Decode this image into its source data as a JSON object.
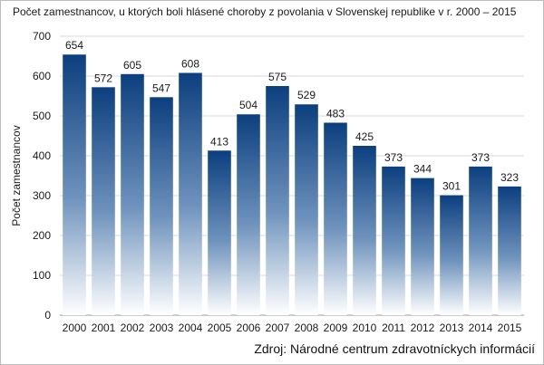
{
  "chart_data": {
    "type": "bar",
    "title": "Počet zamestnancov, u ktorých boli hlásené choroby z povolania v Slovenskej republike v r. 2000 – 2015",
    "ylabel": "Počet zamestnancov",
    "xlabel": "",
    "categories": [
      "2000",
      "2001",
      "2002",
      "2003",
      "2004",
      "2005",
      "2006",
      "2007",
      "2008",
      "2009",
      "2010",
      "2011",
      "2012",
      "2013",
      "2014",
      "2015"
    ],
    "values": [
      654,
      572,
      605,
      547,
      608,
      413,
      504,
      575,
      529,
      483,
      425,
      373,
      344,
      301,
      373,
      323
    ],
    "ylim": [
      0,
      700
    ],
    "yticks": [
      0,
      100,
      200,
      300,
      400,
      500,
      600,
      700
    ],
    "grid": true,
    "bar_color_top": "#0b3f7e",
    "bar_color_bottom": "#ffffff",
    "source": "Zdroj: Národné centrum zdravotníckych informácií"
  }
}
